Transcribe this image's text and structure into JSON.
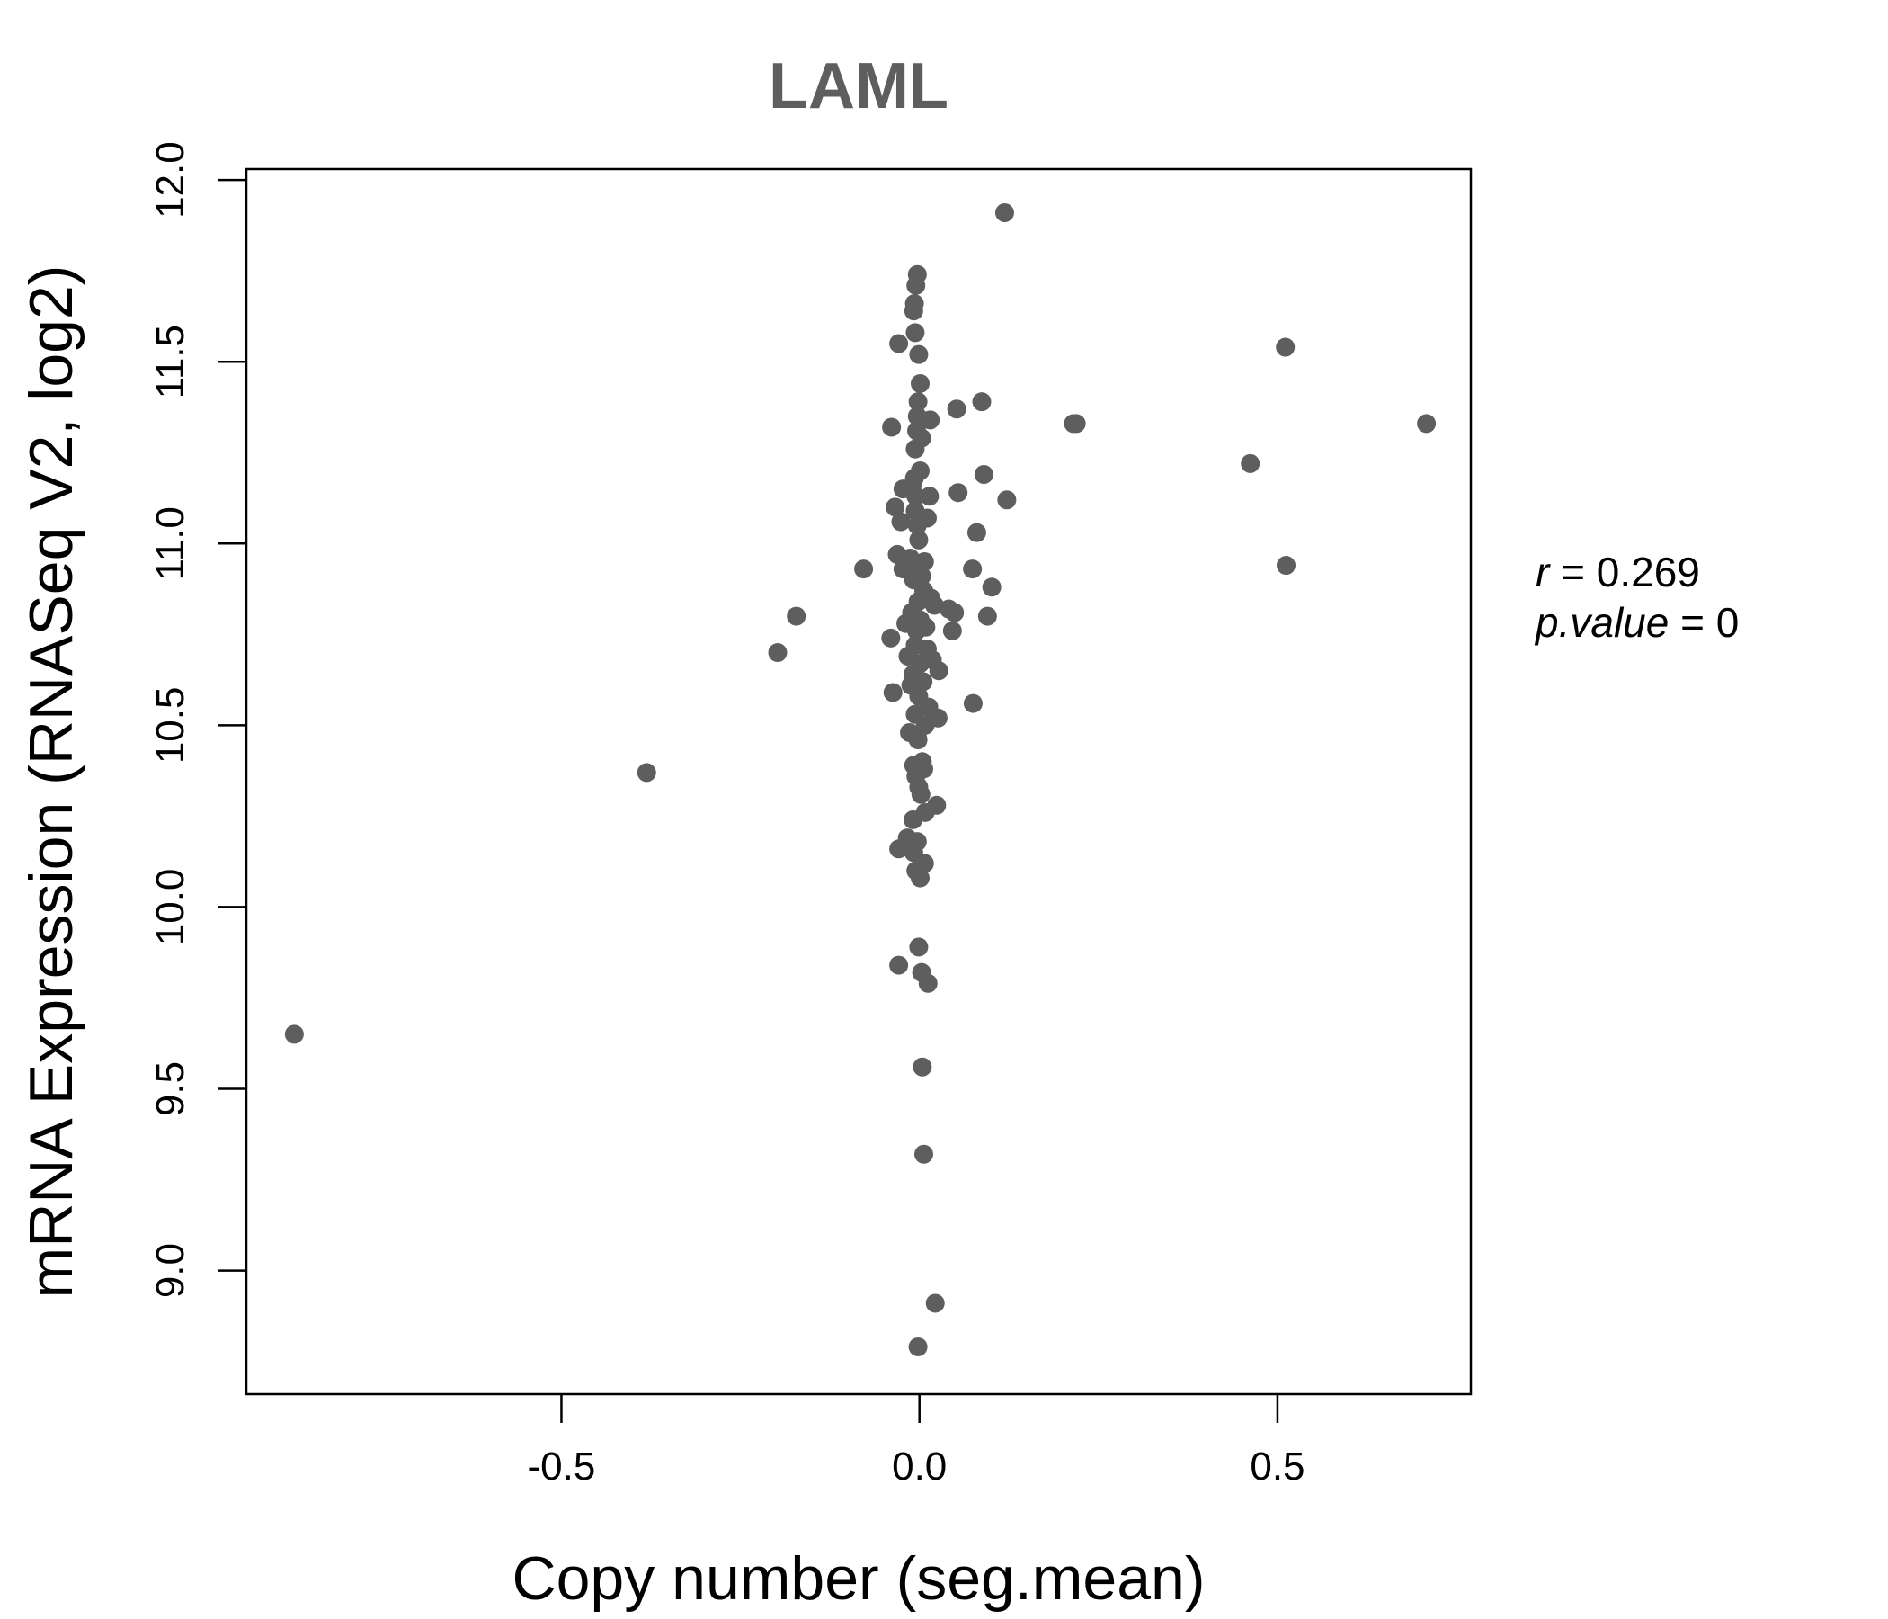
{
  "chart_data": {
    "type": "scatter",
    "title": "LAML",
    "xlabel": "Copy number (seg.mean)",
    "ylabel": "mRNA Expression (RNASeq V2, log2)",
    "xlim": [
      -0.94,
      0.77
    ],
    "ylim": [
      8.66,
      12.03
    ],
    "xticks": [
      -0.5,
      0.0,
      0.5
    ],
    "xtick_labels": [
      "-0.5",
      "0.0",
      "0.5"
    ],
    "yticks": [
      9.0,
      9.5,
      10.0,
      10.5,
      11.0,
      11.5,
      12.0
    ],
    "ytick_labels": [
      "9.0",
      "9.5",
      "10.0",
      "10.5",
      "11.0",
      "11.5",
      "12.0"
    ],
    "point_color": "#5e5e5e",
    "annotation": {
      "r_label": "r",
      "r_value": "0.269",
      "p_label": "p.value",
      "p_value": "0"
    },
    "points": [
      {
        "x": 0.119,
        "y": 11.91
      },
      {
        "x": -0.003,
        "y": 11.74
      },
      {
        "x": -0.005,
        "y": 11.71
      },
      {
        "x": -0.007,
        "y": 11.66
      },
      {
        "x": -0.008,
        "y": 11.64
      },
      {
        "x": -0.006,
        "y": 11.58
      },
      {
        "x": -0.029,
        "y": 11.55
      },
      {
        "x": 0.511,
        "y": 11.54
      },
      {
        "x": -0.001,
        "y": 11.52
      },
      {
        "x": 0.001,
        "y": 11.44
      },
      {
        "x": -0.002,
        "y": 11.39
      },
      {
        "x": 0.087,
        "y": 11.39
      },
      {
        "x": 0.052,
        "y": 11.37
      },
      {
        "x": -0.003,
        "y": 11.35
      },
      {
        "x": 0.015,
        "y": 11.34
      },
      {
        "x": 0.215,
        "y": 11.33
      },
      {
        "x": 0.219,
        "y": 11.33
      },
      {
        "x": 0.708,
        "y": 11.33
      },
      {
        "x": -0.039,
        "y": 11.32
      },
      {
        "x": -0.004,
        "y": 11.31
      },
      {
        "x": 0.003,
        "y": 11.29
      },
      {
        "x": -0.006,
        "y": 11.26
      },
      {
        "x": 0.462,
        "y": 11.22
      },
      {
        "x": 0.001,
        "y": 11.2
      },
      {
        "x": 0.09,
        "y": 11.19
      },
      {
        "x": -0.007,
        "y": 11.18
      },
      {
        "x": -0.01,
        "y": 11.16
      },
      {
        "x": -0.023,
        "y": 11.15
      },
      {
        "x": 0.054,
        "y": 11.14
      },
      {
        "x": -0.005,
        "y": 11.13
      },
      {
        "x": 0.014,
        "y": 11.13
      },
      {
        "x": 0.122,
        "y": 11.12
      },
      {
        "x": -0.034,
        "y": 11.1
      },
      {
        "x": -0.006,
        "y": 11.09
      },
      {
        "x": 0.011,
        "y": 11.07
      },
      {
        "x": -0.026,
        "y": 11.06
      },
      {
        "x": -0.003,
        "y": 11.05
      },
      {
        "x": 0.08,
        "y": 11.03
      },
      {
        "x": -0.001,
        "y": 11.01
      },
      {
        "x": -0.031,
        "y": 10.97
      },
      {
        "x": -0.013,
        "y": 10.96
      },
      {
        "x": 0.007,
        "y": 10.95
      },
      {
        "x": 0.512,
        "y": 10.94
      },
      {
        "x": -0.078,
        "y": 10.93
      },
      {
        "x": -0.023,
        "y": 10.93
      },
      {
        "x": 0.074,
        "y": 10.93
      },
      {
        "x": -0.011,
        "y": 10.92
      },
      {
        "x": 0.003,
        "y": 10.91
      },
      {
        "x": -0.008,
        "y": 10.9
      },
      {
        "x": 0.101,
        "y": 10.88
      },
      {
        "x": 0.006,
        "y": 10.87
      },
      {
        "x": 0.016,
        "y": 10.85
      },
      {
        "x": -0.002,
        "y": 10.84
      },
      {
        "x": 0.021,
        "y": 10.83
      },
      {
        "x": 0.041,
        "y": 10.82
      },
      {
        "x": -0.011,
        "y": 10.81
      },
      {
        "x": 0.049,
        "y": 10.81
      },
      {
        "x": 0.095,
        "y": 10.8
      },
      {
        "x": -0.172,
        "y": 10.8
      },
      {
        "x": 0.001,
        "y": 10.79
      },
      {
        "x": -0.019,
        "y": 10.78
      },
      {
        "x": 0.009,
        "y": 10.77
      },
      {
        "x": 0.046,
        "y": 10.76
      },
      {
        "x": -0.004,
        "y": 10.76
      },
      {
        "x": -0.04,
        "y": 10.74
      },
      {
        "x": -0.006,
        "y": 10.72
      },
      {
        "x": 0.011,
        "y": 10.71
      },
      {
        "x": -0.198,
        "y": 10.7
      },
      {
        "x": -0.016,
        "y": 10.69
      },
      {
        "x": 0.018,
        "y": 10.68
      },
      {
        "x": 0.001,
        "y": 10.67
      },
      {
        "x": 0.027,
        "y": 10.65
      },
      {
        "x": -0.009,
        "y": 10.64
      },
      {
        "x": 0.005,
        "y": 10.62
      },
      {
        "x": -0.012,
        "y": 10.61
      },
      {
        "x": -0.037,
        "y": 10.59
      },
      {
        "x": -0.001,
        "y": 10.58
      },
      {
        "x": 0.075,
        "y": 10.56
      },
      {
        "x": 0.013,
        "y": 10.55
      },
      {
        "x": -0.006,
        "y": 10.53
      },
      {
        "x": 0.026,
        "y": 10.52
      },
      {
        "x": 0.008,
        "y": 10.5
      },
      {
        "x": -0.014,
        "y": 10.48
      },
      {
        "x": -0.003,
        "y": 10.47
      },
      {
        "x": -0.002,
        "y": 10.46
      },
      {
        "x": -0.381,
        "y": 10.37
      },
      {
        "x": 0.004,
        "y": 10.4
      },
      {
        "x": -0.008,
        "y": 10.39
      },
      {
        "x": 0.006,
        "y": 10.38
      },
      {
        "x": -0.005,
        "y": 10.36
      },
      {
        "x": -0.001,
        "y": 10.33
      },
      {
        "x": 0.002,
        "y": 10.31
      },
      {
        "x": 0.024,
        "y": 10.28
      },
      {
        "x": 0.008,
        "y": 10.26
      },
      {
        "x": -0.009,
        "y": 10.24
      },
      {
        "x": -0.017,
        "y": 10.19
      },
      {
        "x": -0.003,
        "y": 10.18
      },
      {
        "x": -0.029,
        "y": 10.16
      },
      {
        "x": -0.008,
        "y": 10.15
      },
      {
        "x": 0.007,
        "y": 10.12
      },
      {
        "x": -0.005,
        "y": 10.1
      },
      {
        "x": 0.001,
        "y": 10.08
      },
      {
        "x": -0.001,
        "y": 9.89
      },
      {
        "x": -0.029,
        "y": 9.84
      },
      {
        "x": 0.003,
        "y": 9.82
      },
      {
        "x": 0.012,
        "y": 9.79
      },
      {
        "x": -0.873,
        "y": 9.65
      },
      {
        "x": 0.004,
        "y": 9.56
      },
      {
        "x": 0.006,
        "y": 9.32
      },
      {
        "x": 0.022,
        "y": 8.91
      },
      {
        "x": -0.002,
        "y": 8.79
      }
    ]
  }
}
